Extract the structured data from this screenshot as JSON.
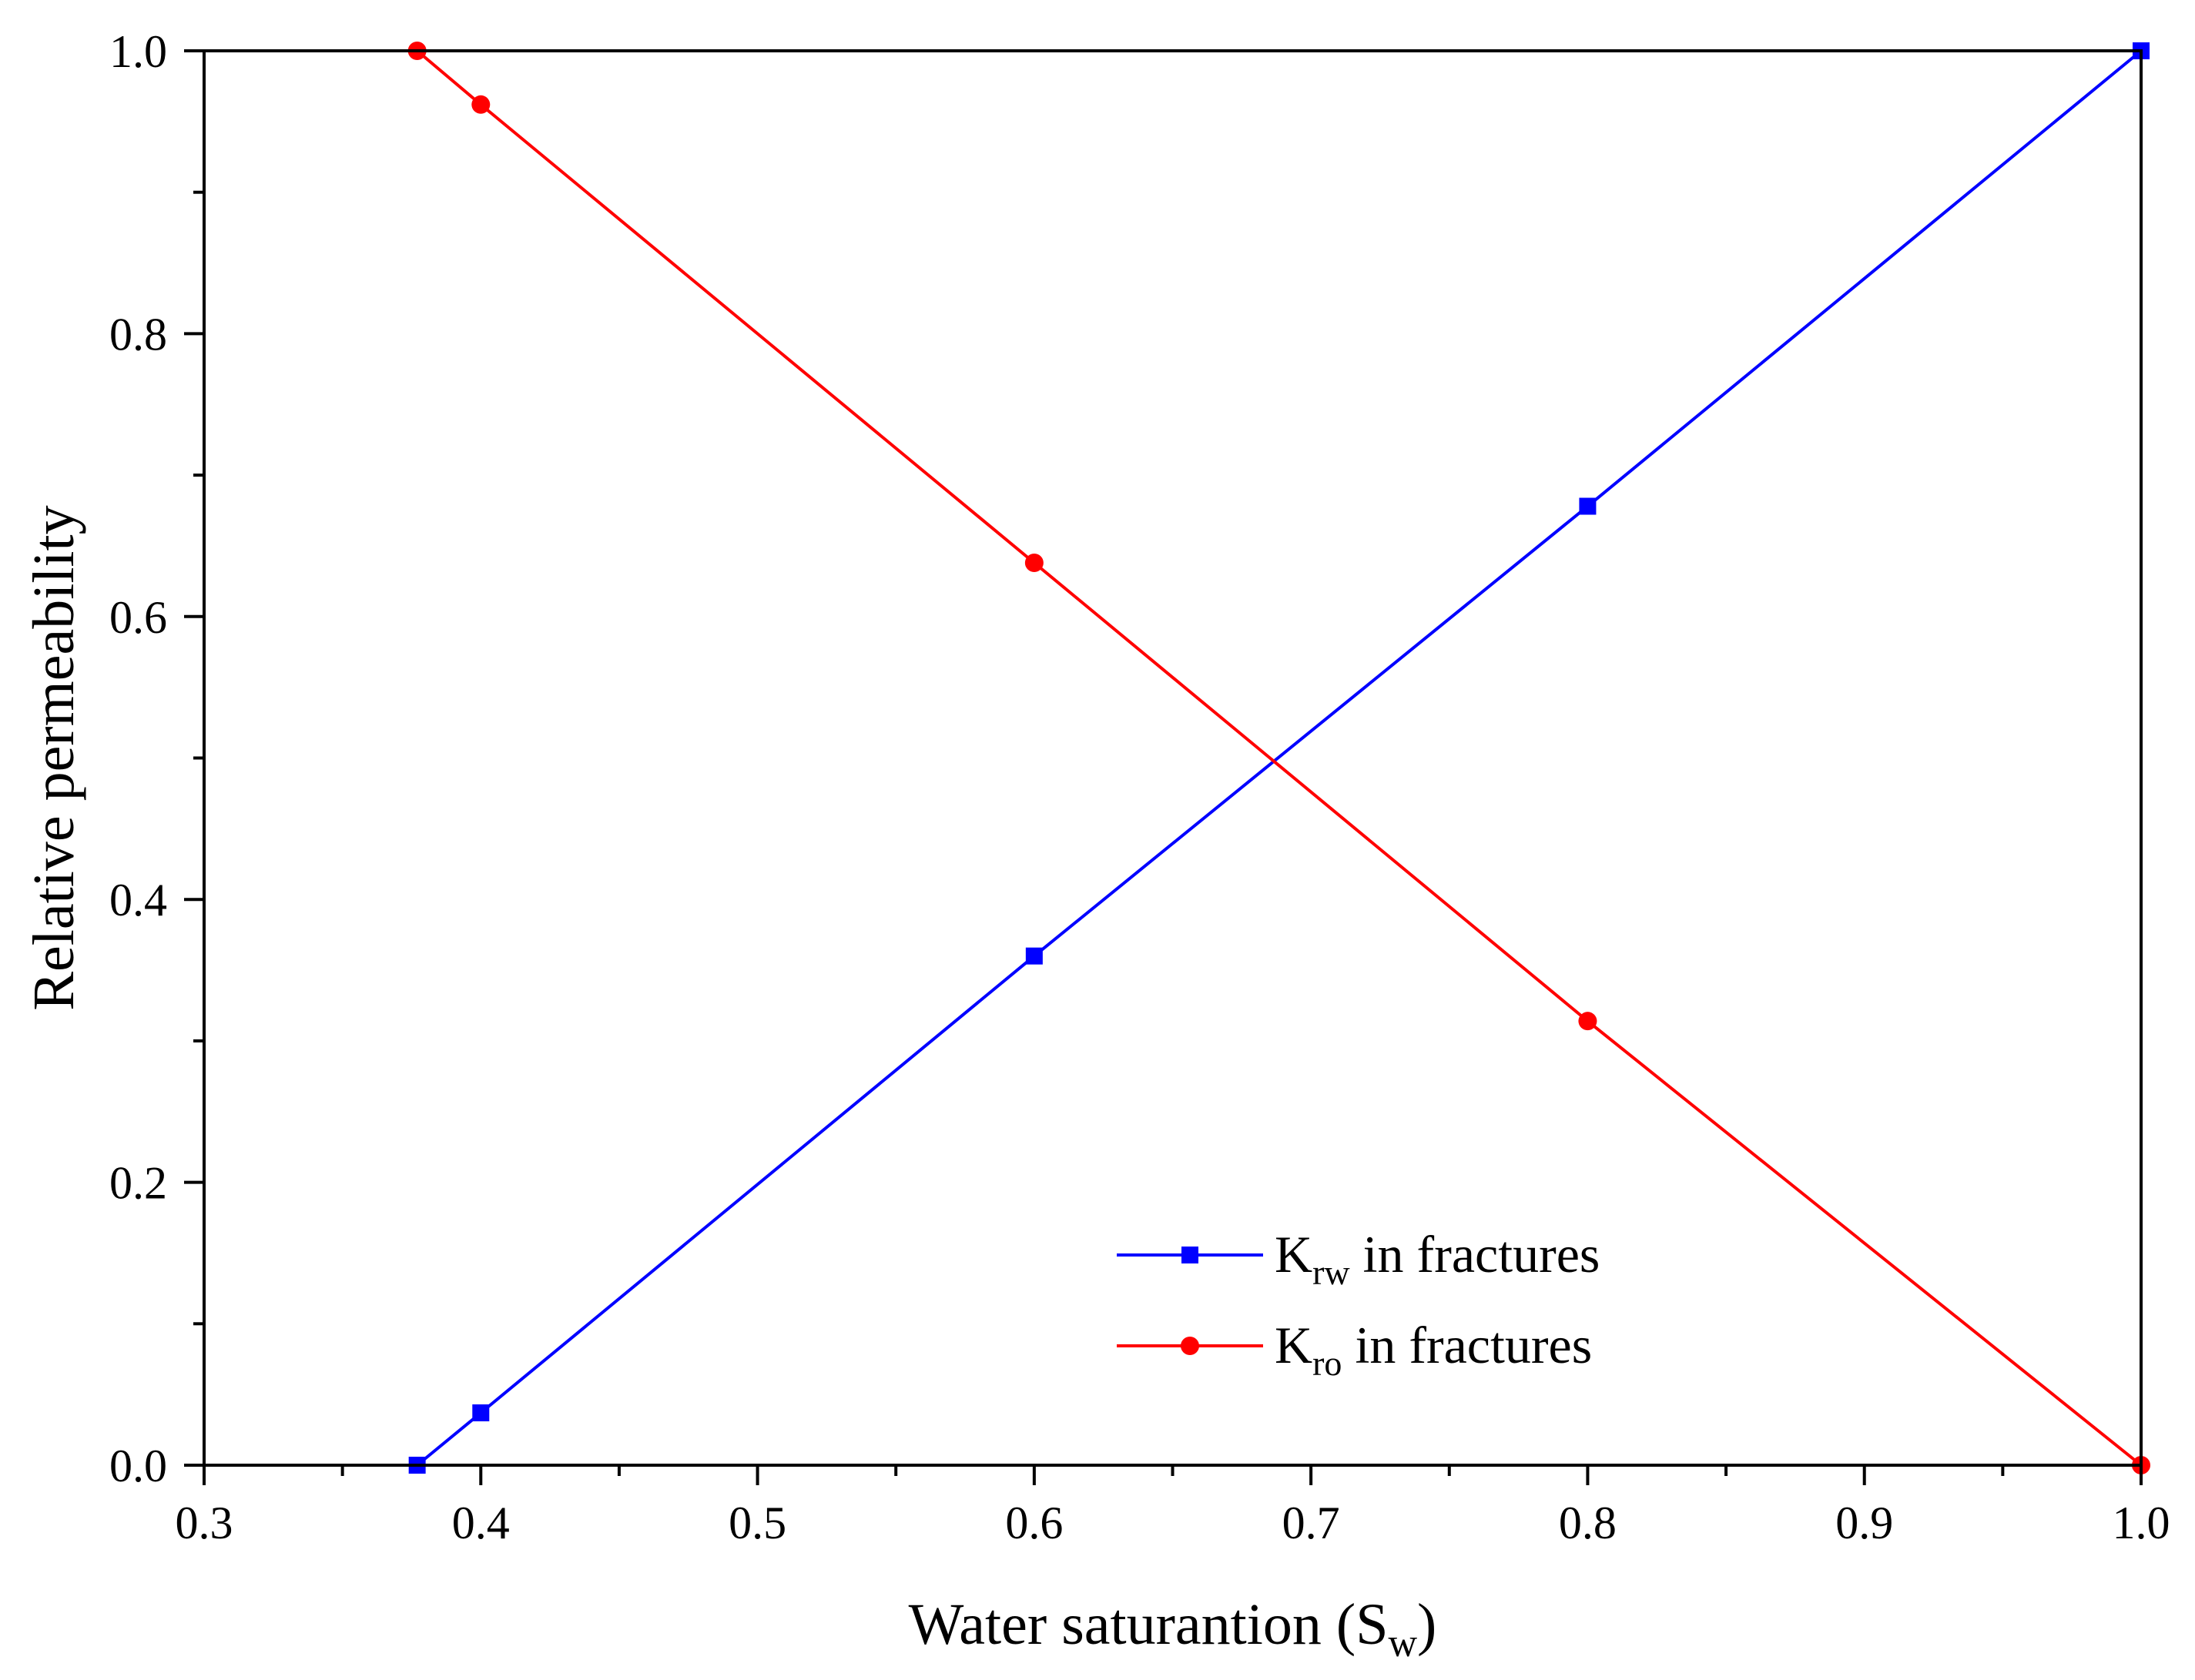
{
  "chart_data": {
    "type": "line",
    "title": "",
    "xlabel": {
      "main": "Water saturantion (S",
      "sub": "w",
      "tail": ")"
    },
    "ylabel": "Relative permeability",
    "xlim": [
      0.3,
      1.0
    ],
    "ylim": [
      0.0,
      1.0
    ],
    "x_ticks": [
      0.3,
      0.4,
      0.5,
      0.6,
      0.7,
      0.8,
      0.9,
      1.0
    ],
    "x_tick_labels": [
      "0.3",
      "0.4",
      "0.5",
      "0.6",
      "0.7",
      "0.8",
      "0.9",
      "1.0"
    ],
    "x_minor_ticks": [
      0.35,
      0.45,
      0.55,
      0.65,
      0.75,
      0.85,
      0.95
    ],
    "y_ticks": [
      0.0,
      0.2,
      0.4,
      0.6,
      0.8,
      1.0
    ],
    "y_tick_labels": [
      "0.0",
      "0.2",
      "0.4",
      "0.6",
      "0.8",
      "1.0"
    ],
    "y_minor_ticks": [
      0.1,
      0.3,
      0.5,
      0.7,
      0.9
    ],
    "grid": false,
    "legend_position": "bottom-right",
    "series": [
      {
        "name": "K_rw in fractures",
        "legend": {
          "main": "K",
          "sub": "rw",
          "tail": " in fractures"
        },
        "color": "#0000ff",
        "marker": "square",
        "x": [
          0.377,
          0.4,
          0.6,
          0.8,
          1.0
        ],
        "y": [
          0.0,
          0.037,
          0.36,
          0.678,
          1.0
        ]
      },
      {
        "name": "K_ro in fractures",
        "legend": {
          "main": "K",
          "sub": "ro",
          "tail": " in fractures"
        },
        "color": "#ff0000",
        "marker": "circle",
        "x": [
          0.377,
          0.4,
          0.6,
          0.8,
          1.0
        ],
        "y": [
          1.0,
          0.962,
          0.638,
          0.314,
          0.0
        ]
      }
    ]
  }
}
